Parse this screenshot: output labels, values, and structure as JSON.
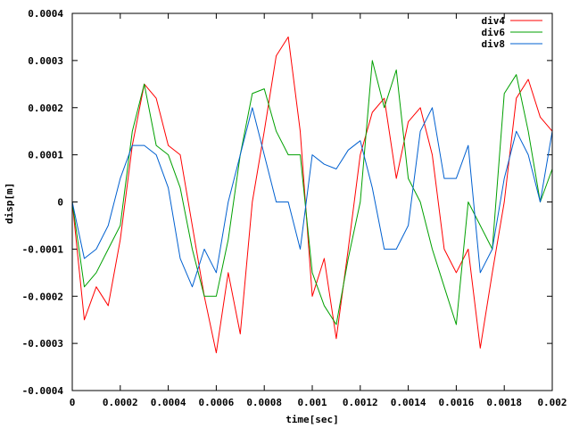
{
  "chart_data": {
    "type": "line",
    "title": "",
    "xlabel": "time[sec]",
    "ylabel": "disp[m]",
    "xlim": [
      0,
      0.002
    ],
    "ylim": [
      -0.0004,
      0.0004
    ],
    "xticks": [
      0,
      0.0002,
      0.0004,
      0.0006,
      0.0008,
      0.001,
      0.0012,
      0.0014,
      0.0016,
      0.0018,
      0.002
    ],
    "xtick_labels": [
      "0",
      "0.0002",
      "0.0004",
      "0.0006",
      "0.0008",
      "0.001",
      "0.0012",
      "0.0014",
      "0.0016",
      "0.0018",
      "0.002"
    ],
    "yticks": [
      -0.0004,
      -0.0003,
      -0.0002,
      -0.0001,
      0,
      0.0001,
      0.0002,
      0.0003,
      0.0004
    ],
    "ytick_labels": [
      "-0.0004",
      "-0.0003",
      "-0.0002",
      "-0.0001",
      "0",
      "0.0001",
      "0.0002",
      "0.0003",
      "0.0004"
    ],
    "grid": false,
    "legend_position": "top-right",
    "series": [
      {
        "name": "div4",
        "color": "#ff0000",
        "x": [
          0,
          5e-05,
          0.0001,
          0.00015,
          0.0002,
          0.00025,
          0.0003,
          0.00035,
          0.0004,
          0.00045,
          0.0005,
          0.00055,
          0.0006,
          0.00065,
          0.0007,
          0.00075,
          0.0008,
          0.00085,
          0.0009,
          0.00095,
          0.001,
          0.00105,
          0.0011,
          0.00115,
          0.0012,
          0.00125,
          0.0013,
          0.00135,
          0.0014,
          0.00145,
          0.0015,
          0.00155,
          0.0016,
          0.00165,
          0.0017,
          0.00175,
          0.0018,
          0.00185,
          0.0019,
          0.00195,
          0.002
        ],
        "y": [
          0,
          -0.00025,
          -0.00018,
          -0.00022,
          -8e-05,
          0.00012,
          0.00025,
          0.00022,
          0.00012,
          0.0001,
          -5e-05,
          -0.0002,
          -0.00032,
          -0.00015,
          -0.00028,
          0.0,
          0.00015,
          0.00031,
          0.00035,
          0.00015,
          -0.0002,
          -0.00012,
          -0.00029,
          -0.0001,
          0.0001,
          0.00019,
          0.00022,
          5e-05,
          0.00017,
          0.0002,
          0.0001,
          -0.0001,
          -0.00015,
          -0.0001,
          -0.00031,
          -0.00015,
          0.0,
          0.00022,
          0.00026,
          0.00018,
          0.00015
        ]
      },
      {
        "name": "div6",
        "color": "#00a000",
        "x": [
          0,
          5e-05,
          0.0001,
          0.00015,
          0.0002,
          0.00025,
          0.0003,
          0.00035,
          0.0004,
          0.00045,
          0.0005,
          0.00055,
          0.0006,
          0.00065,
          0.0007,
          0.00075,
          0.0008,
          0.00085,
          0.0009,
          0.00095,
          0.001,
          0.00105,
          0.0011,
          0.00115,
          0.0012,
          0.00125,
          0.0013,
          0.00135,
          0.0014,
          0.00145,
          0.0015,
          0.00155,
          0.0016,
          0.00165,
          0.0017,
          0.00175,
          0.0018,
          0.00185,
          0.0019,
          0.00195,
          0.002
        ],
        "y": [
          0,
          -0.00018,
          -0.00015,
          -0.0001,
          -5e-05,
          0.00015,
          0.00025,
          0.00012,
          0.0001,
          3e-05,
          -0.0001,
          -0.0002,
          -0.0002,
          -8e-05,
          0.0001,
          0.00023,
          0.00024,
          0.00015,
          0.0001,
          0.0001,
          -0.00015,
          -0.00022,
          -0.00026,
          -0.00012,
          0.0,
          0.0003,
          0.0002,
          0.00028,
          5e-05,
          0.0,
          -0.0001,
          -0.00018,
          -0.00026,
          0.0,
          -5e-05,
          -0.0001,
          0.00023,
          0.00027,
          0.00015,
          0.0,
          7e-05
        ]
      },
      {
        "name": "div8",
        "color": "#0060d0",
        "x": [
          0,
          5e-05,
          0.0001,
          0.00015,
          0.0002,
          0.00025,
          0.0003,
          0.00035,
          0.0004,
          0.00045,
          0.0005,
          0.00055,
          0.0006,
          0.00065,
          0.0007,
          0.00075,
          0.0008,
          0.00085,
          0.0009,
          0.00095,
          0.001,
          0.00105,
          0.0011,
          0.00115,
          0.0012,
          0.00125,
          0.0013,
          0.00135,
          0.0014,
          0.00145,
          0.0015,
          0.00155,
          0.0016,
          0.00165,
          0.0017,
          0.00175,
          0.0018,
          0.00185,
          0.0019,
          0.00195,
          0.002
        ],
        "y": [
          0,
          -0.00012,
          -0.0001,
          -5e-05,
          5e-05,
          0.00012,
          0.00012,
          0.0001,
          3e-05,
          -0.00012,
          -0.00018,
          -0.0001,
          -0.00015,
          0.0,
          0.0001,
          0.0002,
          0.0001,
          0.0,
          0.0,
          -0.0001,
          0.0001,
          8e-05,
          7e-05,
          0.00011,
          0.00013,
          3e-05,
          -0.0001,
          -0.0001,
          -5e-05,
          0.00015,
          0.0002,
          5e-05,
          5e-05,
          0.00012,
          -0.00015,
          -0.0001,
          5e-05,
          0.00015,
          0.0001,
          0.0,
          0.00015
        ]
      }
    ]
  }
}
